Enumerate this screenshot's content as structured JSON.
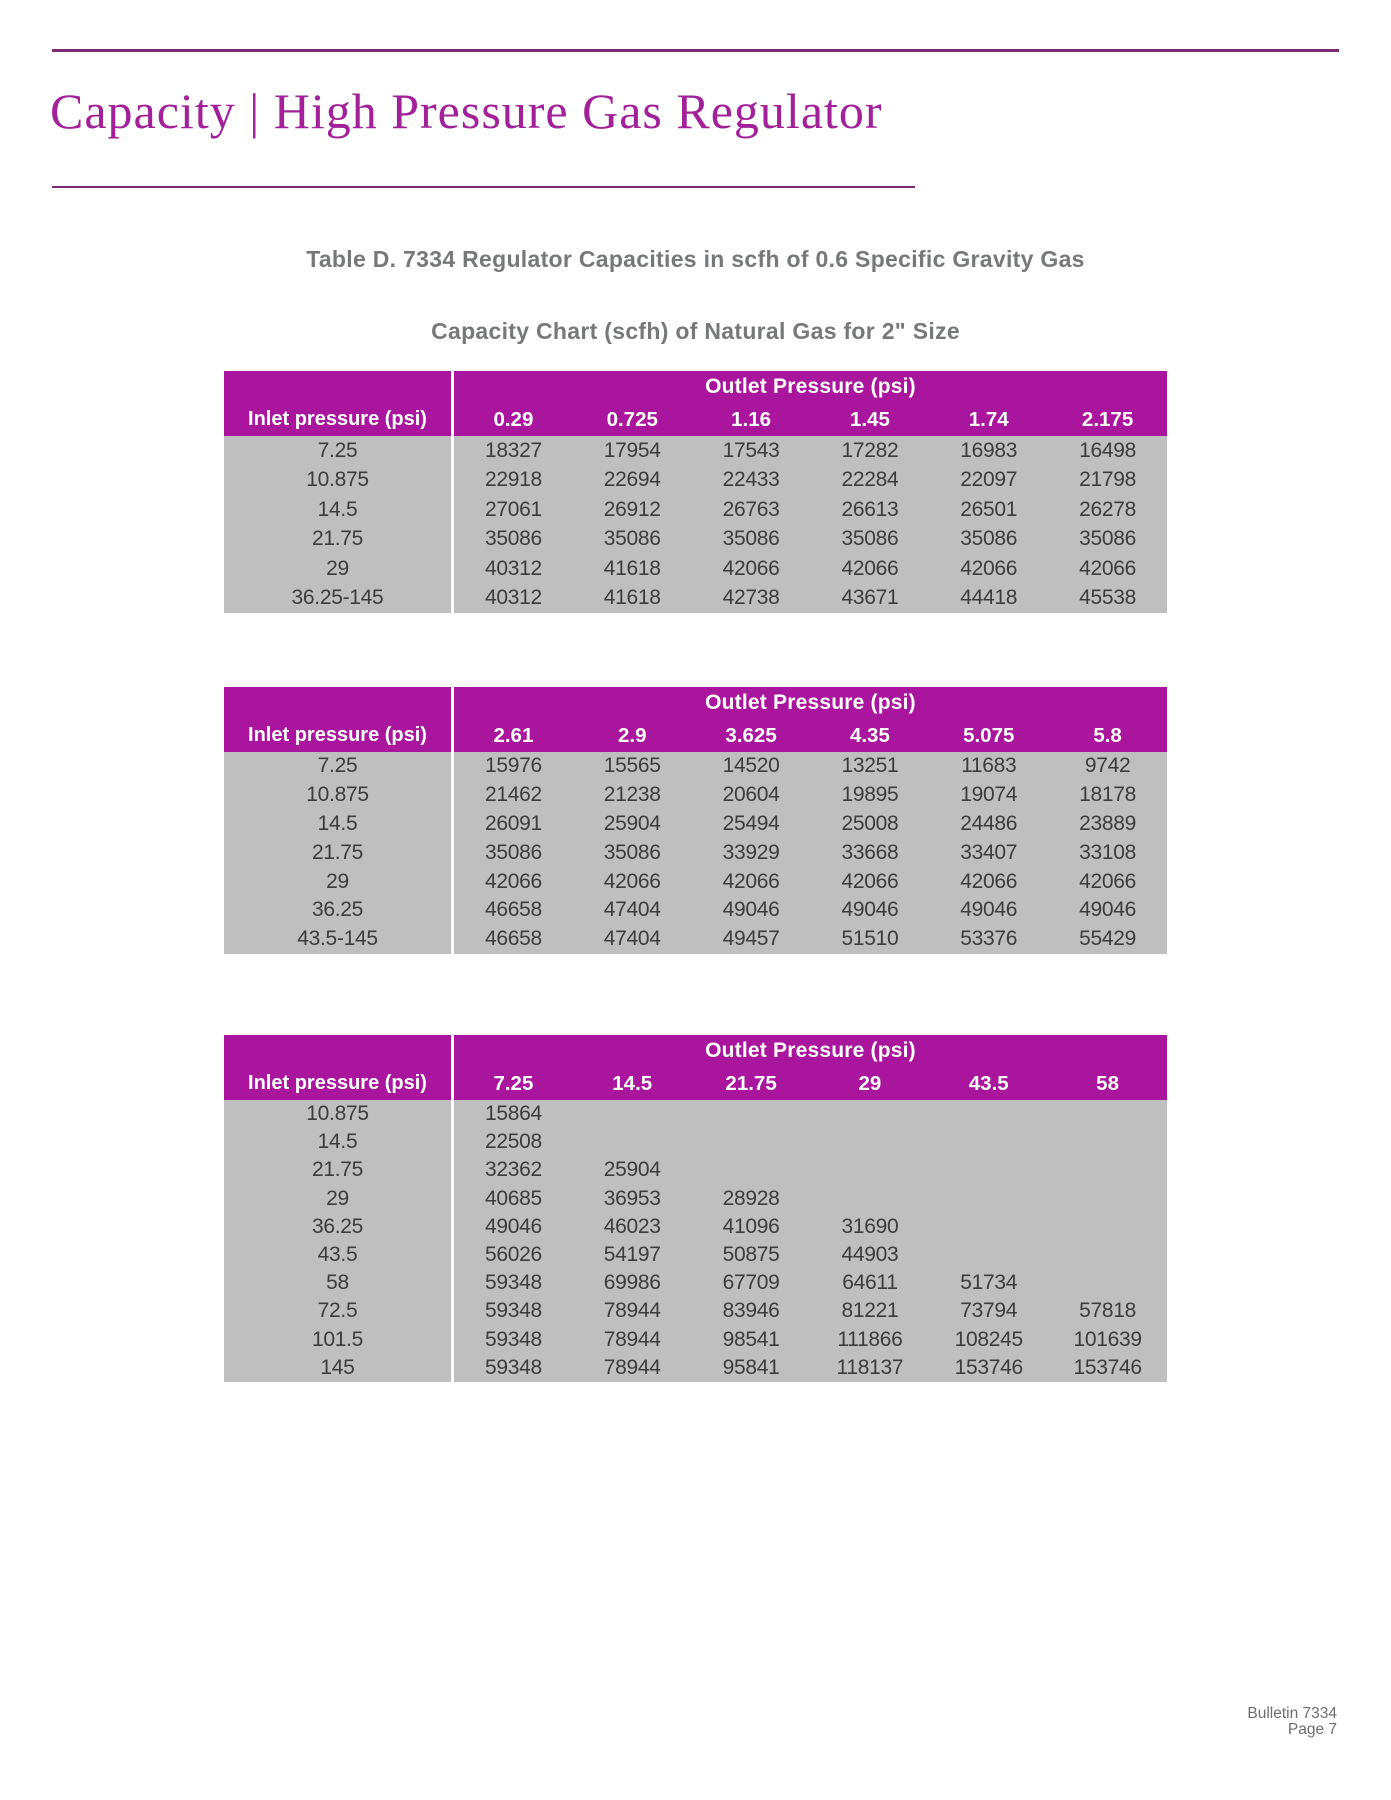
{
  "page": {
    "title": "Capacity | High Pressure Gas Regulator",
    "caption_line1": "Table D. 7334 Regulator Capacities in scfh of 0.6 Specific Gravity Gas",
    "caption_line2": "Capacity Chart (scfh) of Natural Gas for 2\" Size",
    "footer": {
      "line1": "Bulletin 7334",
      "line2": "Page 7"
    }
  },
  "colors": {
    "accent": "#a9159c",
    "title_text": "#a2219a",
    "rule": "#7e2a71",
    "table_body_bg": "#c0bfbf",
    "caption_text": "#77787a",
    "cell_text": "#3c3c3c",
    "footer_text": "#6d6e70"
  },
  "tables": [
    {
      "outlet_header": "Outlet Pressure (psi)",
      "inlet_header": "Inlet pressure (psi)",
      "columns": [
        "0.29",
        "0.725",
        "1.16",
        "1.45",
        "1.74",
        "2.175"
      ],
      "rows": [
        {
          "inlet": "7.25",
          "values": [
            "18327",
            "17954",
            "17543",
            "17282",
            "16983",
            "16498"
          ]
        },
        {
          "inlet": "10.875",
          "values": [
            "22918",
            "22694",
            "22433",
            "22284",
            "22097",
            "21798"
          ]
        },
        {
          "inlet": "14.5",
          "values": [
            "27061",
            "26912",
            "26763",
            "26613",
            "26501",
            "26278"
          ]
        },
        {
          "inlet": "21.75",
          "values": [
            "35086",
            "35086",
            "35086",
            "35086",
            "35086",
            "35086"
          ]
        },
        {
          "inlet": "29",
          "values": [
            "40312",
            "41618",
            "42066",
            "42066",
            "42066",
            "42066"
          ]
        },
        {
          "inlet": "36.25-145",
          "values": [
            "40312",
            "41618",
            "42738",
            "43671",
            "44418",
            "45538"
          ]
        }
      ]
    },
    {
      "outlet_header": "Outlet Pressure (psi)",
      "inlet_header": "Inlet pressure (psi)",
      "columns": [
        "2.61",
        "2.9",
        "3.625",
        "4.35",
        "5.075",
        "5.8"
      ],
      "rows": [
        {
          "inlet": "7.25",
          "values": [
            "15976",
            "15565",
            "14520",
            "13251",
            "11683",
            "9742"
          ]
        },
        {
          "inlet": "10.875",
          "values": [
            "21462",
            "21238",
            "20604",
            "19895",
            "19074",
            "18178"
          ]
        },
        {
          "inlet": "14.5",
          "values": [
            "26091",
            "25904",
            "25494",
            "25008",
            "24486",
            "23889"
          ]
        },
        {
          "inlet": "21.75",
          "values": [
            "35086",
            "35086",
            "33929",
            "33668",
            "33407",
            "33108"
          ]
        },
        {
          "inlet": "29",
          "values": [
            "42066",
            "42066",
            "42066",
            "42066",
            "42066",
            "42066"
          ]
        },
        {
          "inlet": "36.25",
          "values": [
            "46658",
            "47404",
            "49046",
            "49046",
            "49046",
            "49046"
          ]
        },
        {
          "inlet": "43.5-145",
          "values": [
            "46658",
            "47404",
            "49457",
            "51510",
            "53376",
            "55429"
          ]
        }
      ]
    },
    {
      "outlet_header": "Outlet Pressure (psi)",
      "inlet_header": "Inlet pressure (psi)",
      "columns": [
        "7.25",
        "14.5",
        "21.75",
        "29",
        "43.5",
        "58"
      ],
      "rows": [
        {
          "inlet": "10.875",
          "values": [
            "15864",
            "",
            "",
            "",
            "",
            ""
          ]
        },
        {
          "inlet": "14.5",
          "values": [
            "22508",
            "",
            "",
            "",
            "",
            ""
          ]
        },
        {
          "inlet": "21.75",
          "values": [
            "32362",
            "25904",
            "",
            "",
            "",
            ""
          ]
        },
        {
          "inlet": "29",
          "values": [
            "40685",
            "36953",
            "28928",
            "",
            "",
            ""
          ]
        },
        {
          "inlet": "36.25",
          "values": [
            "49046",
            "46023",
            "41096",
            "31690",
            "",
            ""
          ]
        },
        {
          "inlet": "43.5",
          "values": [
            "56026",
            "54197",
            "50875",
            "44903",
            "",
            ""
          ]
        },
        {
          "inlet": "58",
          "values": [
            "59348",
            "69986",
            "67709",
            "64611",
            "51734",
            ""
          ]
        },
        {
          "inlet": "72.5",
          "values": [
            "59348",
            "78944",
            "83946",
            "81221",
            "73794",
            "57818"
          ]
        },
        {
          "inlet": "101.5",
          "values": [
            "59348",
            "78944",
            "98541",
            "111866",
            "108245",
            "101639"
          ]
        },
        {
          "inlet": "145",
          "values": [
            "59348",
            "78944",
            "95841",
            "118137",
            "153746",
            "153746"
          ]
        }
      ]
    }
  ]
}
